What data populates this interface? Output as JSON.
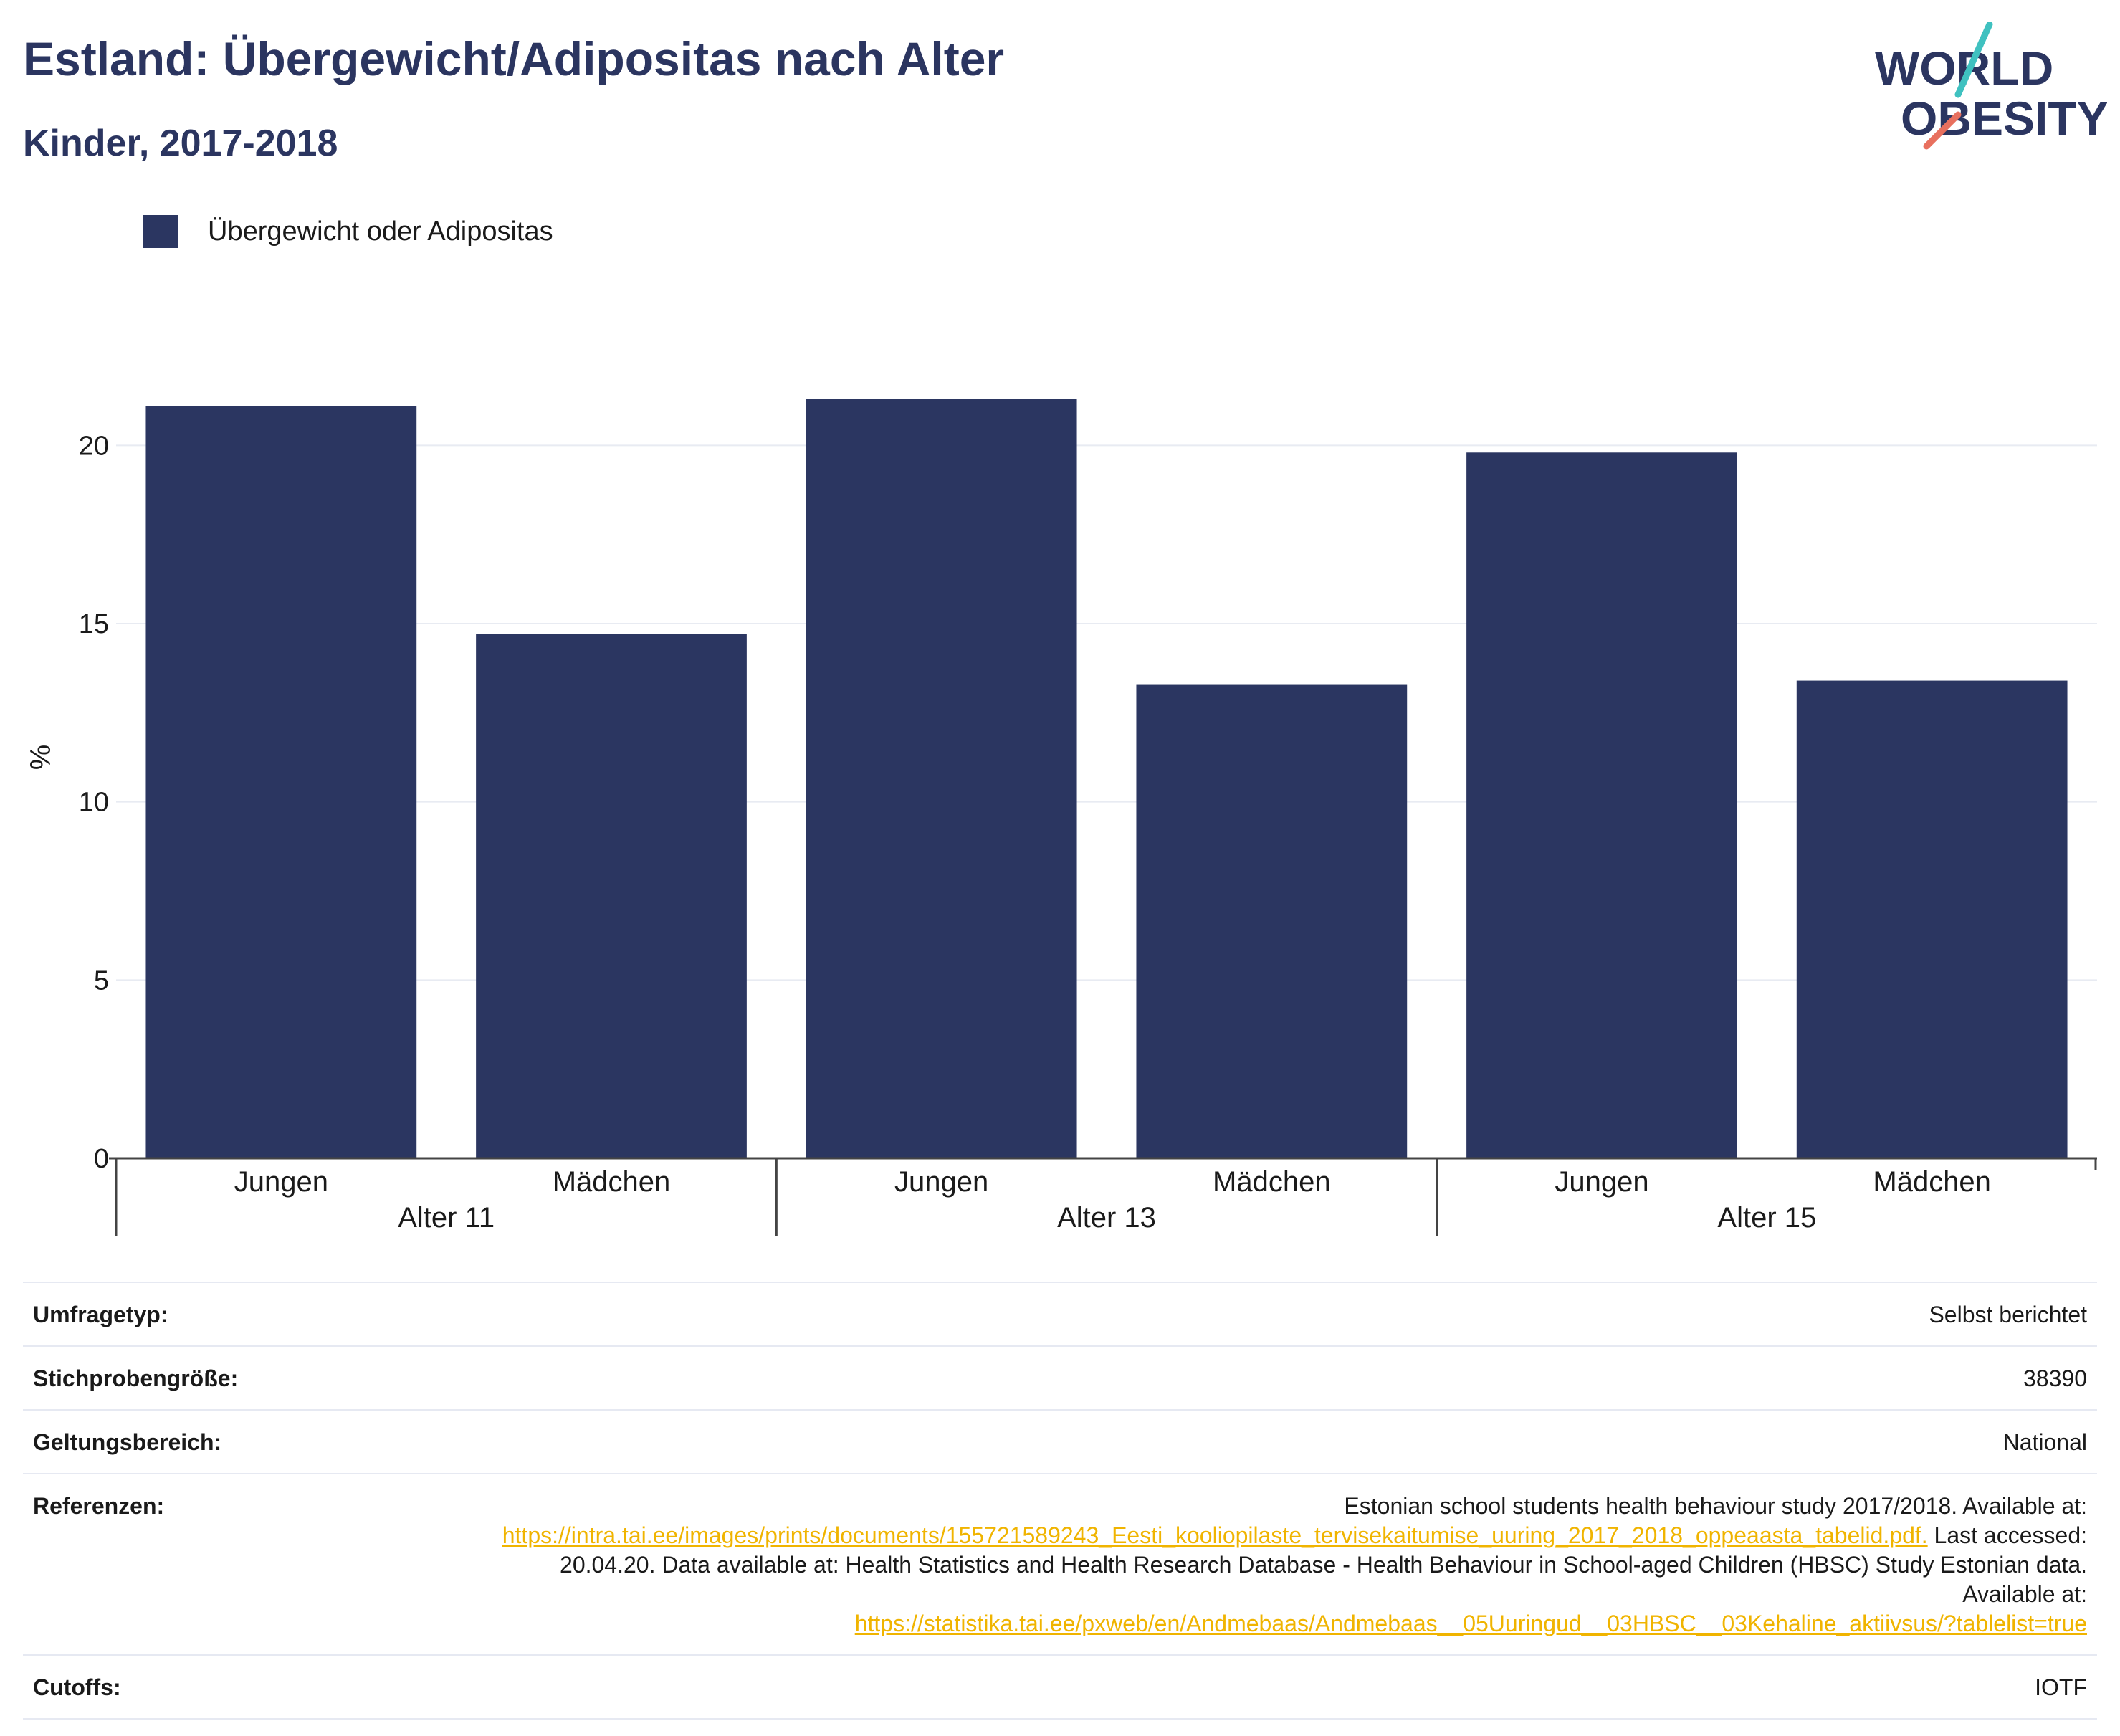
{
  "header": {
    "title": "Estland: Übergewicht/Adipositas nach Alter",
    "subtitle": "Kinder, 2017-2018"
  },
  "logo": {
    "line1": "WORLD",
    "line2": "OBESITY"
  },
  "colors": {
    "bar": "#2b3661",
    "title": "#2b3560",
    "link": "#f0b400",
    "logo_teal": "#3fc1c0",
    "logo_coral": "#e8705e"
  },
  "chart_data": {
    "type": "bar",
    "title": "Estland: Übergewicht/Adipositas nach Alter",
    "subtitle": "Kinder, 2017-2018",
    "ylabel": "%",
    "ylim": [
      0,
      22.5
    ],
    "yticks": [
      0,
      5,
      10,
      15,
      20
    ],
    "grid": true,
    "legend_position": "top-left",
    "groups": [
      {
        "label": "Alter 11",
        "categories": [
          "Jungen",
          "Mädchen"
        ]
      },
      {
        "label": "Alter 13",
        "categories": [
          "Jungen",
          "Mädchen"
        ]
      },
      {
        "label": "Alter 15",
        "categories": [
          "Jungen",
          "Mädchen"
        ]
      }
    ],
    "series": [
      {
        "name": "Übergewicht oder Adipositas",
        "values": [
          21.1,
          14.7,
          21.3,
          13.3,
          19.8,
          13.4
        ]
      }
    ]
  },
  "info": {
    "rows": [
      {
        "label": "Umfragetyp:",
        "value": "Selbst berichtet"
      },
      {
        "label": "Stichprobengröße:",
        "value": "38390"
      },
      {
        "label": "Geltungsbereich:",
        "value": "National"
      },
      {
        "label": "Referenzen:",
        "value_part1": "Estonian school students health behaviour study 2017/2018. Available at:",
        "link1": "https://intra.tai.ee/images/prints/documents/155721589243_Eesti_kooliopilaste_tervisekaitumise_uuring_2017_2018_oppeaasta_tabelid.pdf.",
        "value_part2": " Last accessed: 20.04.20. Data available at: Health Statistics and Health Research Database - Health Behaviour in School-aged Children (HBSC) Study Estonian data. Available at:",
        "link2": "https://statistika.tai.ee/pxweb/en/Andmebaas/Andmebaas__05Uuringud__03HBSC__03Kehaline_aktiivsus/?tablelist=true"
      },
      {
        "label": "Cutoffs:",
        "value": "IOTF"
      }
    ]
  }
}
